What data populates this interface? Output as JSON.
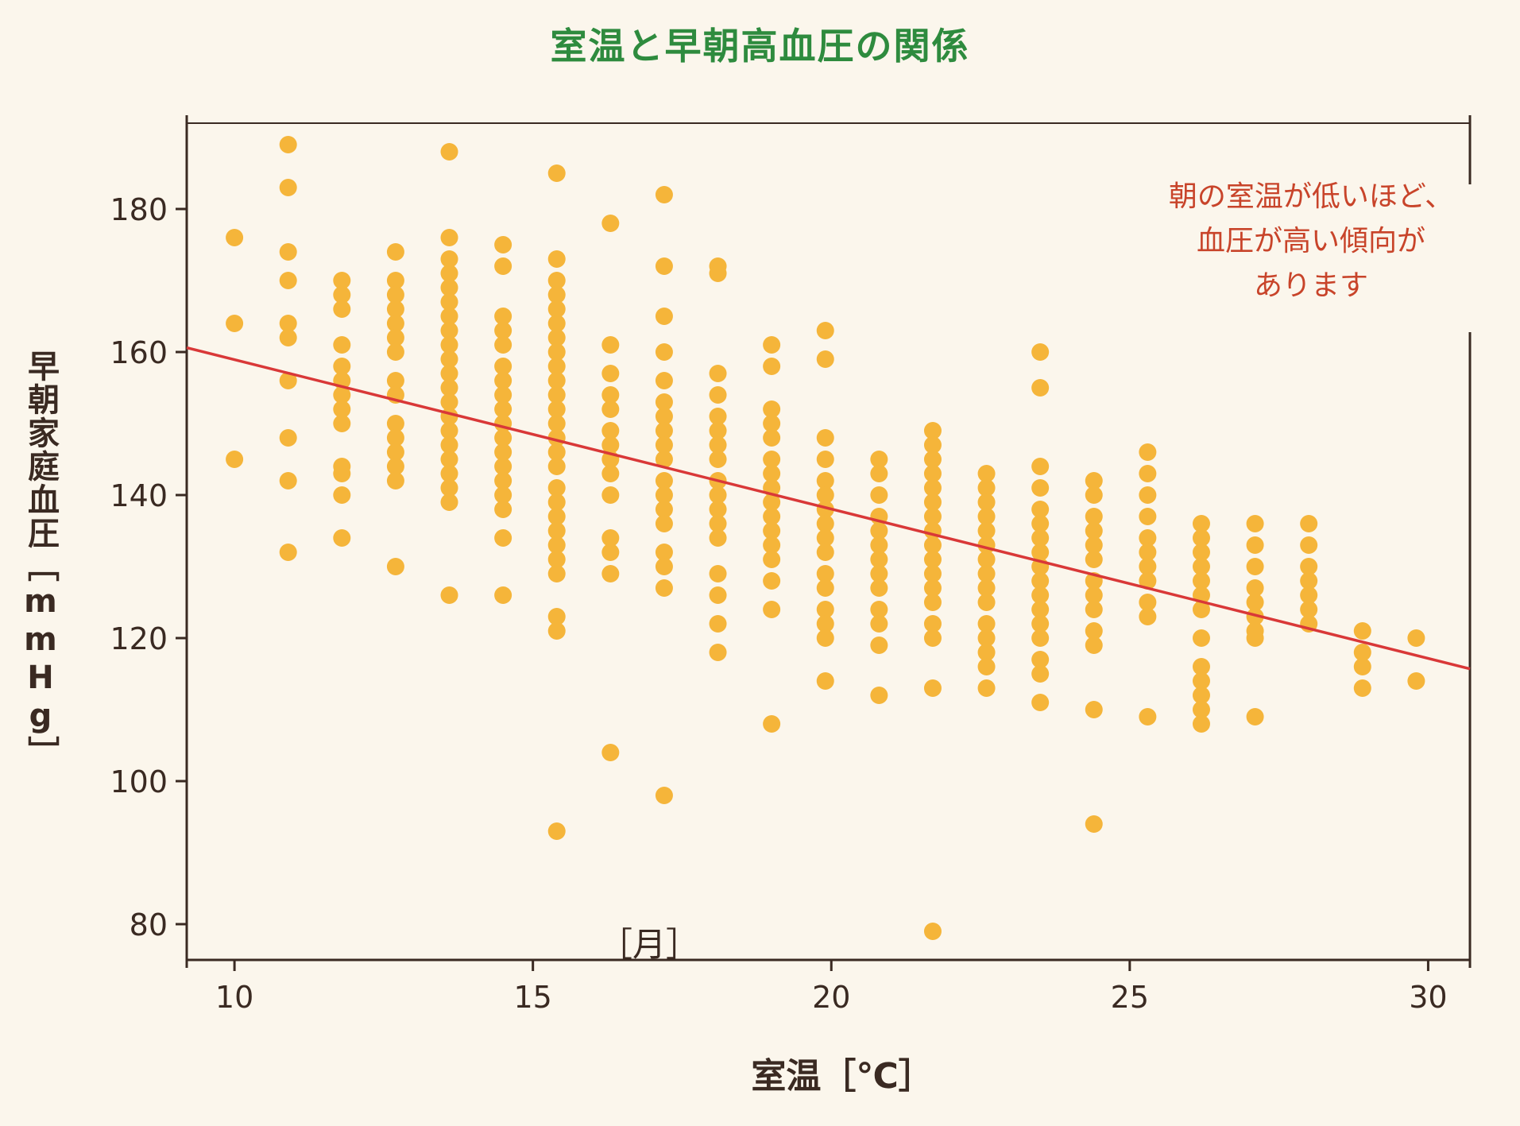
{
  "chart_data": {
    "type": "scatter",
    "title": "室温と早朝高血圧の関係",
    "xlabel": "室温［℃］",
    "ylabel": "早朝家庭血圧［mmHg］",
    "xlim": [
      9.2,
      30.7
    ],
    "ylim": [
      75,
      192
    ],
    "xticks": [
      10,
      15,
      20,
      25,
      30
    ],
    "yticks": [
      80,
      100,
      120,
      140,
      160,
      180
    ],
    "annotation": [
      "朝の室温が低いほど、",
      "血圧が高い傾向が",
      "あります"
    ],
    "subnote": "［月］",
    "trendline": {
      "x": [
        9.2,
        30.7
      ],
      "y": [
        160.6,
        115.7
      ]
    },
    "point_color": "#f5b53a",
    "line_color": "#d93838",
    "axis_color": "#3a2a22",
    "series": [
      {
        "x": 10.0,
        "y": [
          176,
          164,
          145
        ]
      },
      {
        "x": 10.9,
        "y": [
          189,
          183,
          174,
          170,
          164,
          162,
          156,
          148,
          142,
          132
        ]
      },
      {
        "x": 11.8,
        "y": [
          170,
          168,
          166,
          161,
          158,
          156,
          154,
          152,
          150,
          144,
          143,
          140,
          134
        ]
      },
      {
        "x": 12.7,
        "y": [
          174,
          170,
          168,
          166,
          164,
          162,
          160,
          156,
          154,
          150,
          148,
          146,
          144,
          142,
          130
        ]
      },
      {
        "x": 13.6,
        "y": [
          188,
          176,
          173,
          171,
          169,
          167,
          165,
          163,
          161,
          159,
          157,
          155,
          153,
          151,
          149,
          147,
          145,
          143,
          141,
          139,
          126
        ]
      },
      {
        "x": 14.5,
        "y": [
          175,
          172,
          165,
          163,
          161,
          158,
          156,
          154,
          152,
          150,
          148,
          146,
          144,
          142,
          140,
          138,
          134,
          126
        ]
      },
      {
        "x": 15.4,
        "y": [
          185,
          173,
          170,
          168,
          166,
          164,
          162,
          160,
          158,
          156,
          154,
          152,
          150,
          148,
          146,
          144,
          141,
          139,
          137,
          135,
          133,
          131,
          129,
          123,
          121,
          93
        ]
      },
      {
        "x": 16.3,
        "y": [
          178,
          161,
          157,
          154,
          152,
          149,
          147,
          145,
          143,
          140,
          134,
          132,
          129,
          104
        ]
      },
      {
        "x": 17.2,
        "y": [
          182,
          172,
          165,
          160,
          156,
          153,
          151,
          149,
          147,
          145,
          142,
          140,
          138,
          136,
          132,
          130,
          127,
          98
        ]
      },
      {
        "x": 18.1,
        "y": [
          172,
          171,
          157,
          154,
          151,
          149,
          147,
          145,
          142,
          140,
          138,
          136,
          134,
          129,
          126,
          122,
          118
        ]
      },
      {
        "x": 19.0,
        "y": [
          161,
          158,
          152,
          150,
          148,
          145,
          143,
          141,
          139,
          137,
          135,
          133,
          131,
          128,
          124,
          108
        ]
      },
      {
        "x": 19.9,
        "y": [
          163,
          159,
          148,
          145,
          142,
          140,
          138,
          136,
          134,
          132,
          129,
          127,
          124,
          122,
          120,
          114
        ]
      },
      {
        "x": 20.8,
        "y": [
          145,
          143,
          140,
          137,
          135,
          133,
          131,
          129,
          127,
          124,
          122,
          119,
          112
        ]
      },
      {
        "x": 21.7,
        "y": [
          149,
          147,
          145,
          143,
          141,
          139,
          137,
          135,
          133,
          131,
          129,
          127,
          125,
          122,
          120,
          113,
          79
        ]
      },
      {
        "x": 22.6,
        "y": [
          143,
          141,
          139,
          137,
          135,
          133,
          131,
          129,
          127,
          125,
          122,
          120,
          118,
          116,
          113
        ]
      },
      {
        "x": 23.5,
        "y": [
          160,
          155,
          144,
          141,
          138,
          136,
          134,
          132,
          130,
          128,
          126,
          124,
          122,
          120,
          117,
          115,
          111
        ]
      },
      {
        "x": 24.4,
        "y": [
          142,
          140,
          137,
          135,
          133,
          131,
          128,
          126,
          124,
          121,
          119,
          110,
          94
        ]
      },
      {
        "x": 25.3,
        "y": [
          146,
          143,
          140,
          137,
          134,
          132,
          130,
          128,
          125,
          123,
          109
        ]
      },
      {
        "x": 26.2,
        "y": [
          136,
          134,
          132,
          130,
          128,
          126,
          124,
          120,
          116,
          114,
          112,
          110,
          108
        ]
      },
      {
        "x": 27.1,
        "y": [
          136,
          133,
          130,
          127,
          125,
          123,
          121,
          120,
          109
        ]
      },
      {
        "x": 28.0,
        "y": [
          136,
          133,
          130,
          128,
          126,
          124,
          122
        ]
      },
      {
        "x": 28.9,
        "y": [
          121,
          118,
          116,
          113
        ]
      },
      {
        "x": 29.8,
        "y": [
          120,
          114
        ]
      }
    ]
  }
}
